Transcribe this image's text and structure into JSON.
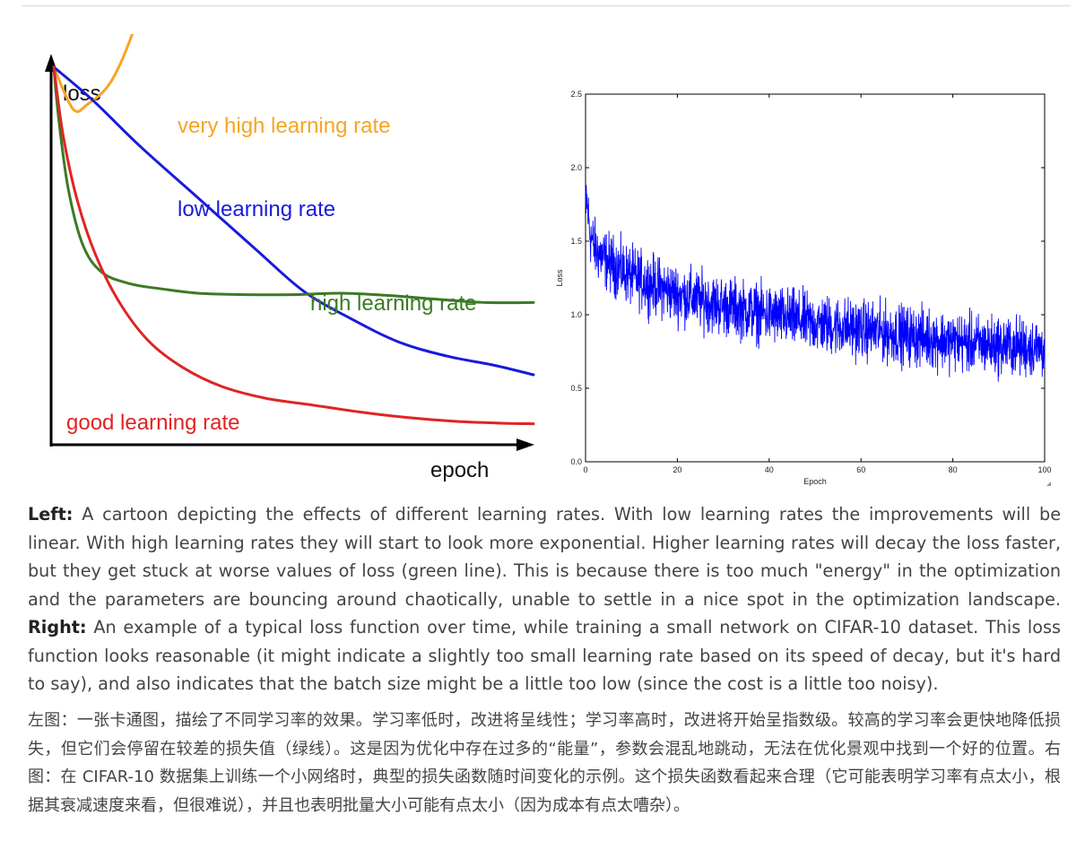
{
  "chart_data": [
    {
      "type": "line",
      "title": "",
      "xlabel": "epoch",
      "ylabel": "loss",
      "grid": false,
      "series": [
        {
          "name": "very high learning rate",
          "color": "#f5a623",
          "x": [
            0,
            0.04,
            0.07,
            0.12,
            0.17,
            0.21,
            0.25
          ],
          "y": [
            0.81,
            0.72,
            0.73,
            0.78,
            0.9,
            1.05,
            1.18
          ]
        },
        {
          "name": "low learning rate",
          "color": "#1a1adb",
          "x": [
            0,
            0.08,
            0.18,
            0.3,
            0.42,
            0.52,
            0.62,
            0.72,
            0.82,
            0.92,
            1.0
          ],
          "y": [
            0.81,
            0.74,
            0.64,
            0.53,
            0.42,
            0.33,
            0.27,
            0.22,
            0.19,
            0.17,
            0.15
          ]
        },
        {
          "name": "high learning rate",
          "color": "#3b7a24",
          "x": [
            0,
            0.01,
            0.03,
            0.06,
            0.1,
            0.16,
            0.22,
            0.3,
            0.4,
            0.5,
            0.6,
            0.7,
            0.8,
            0.9,
            1.0
          ],
          "y": [
            0.81,
            0.7,
            0.55,
            0.43,
            0.37,
            0.345,
            0.335,
            0.325,
            0.322,
            0.322,
            0.325,
            0.32,
            0.312,
            0.305,
            0.305
          ]
        },
        {
          "name": "good learning rate",
          "color": "#e02424",
          "x": [
            0,
            0.02,
            0.05,
            0.09,
            0.14,
            0.2,
            0.27,
            0.35,
            0.44,
            0.54,
            0.64,
            0.74,
            0.84,
            0.94,
            1.0
          ],
          "y": [
            0.81,
            0.66,
            0.52,
            0.4,
            0.3,
            0.22,
            0.165,
            0.125,
            0.1,
            0.085,
            0.07,
            0.058,
            0.05,
            0.046,
            0.045
          ]
        }
      ]
    },
    {
      "type": "line",
      "title": "",
      "xlabel": "Epoch",
      "ylabel": "Loss",
      "xlim": [
        0,
        100
      ],
      "ylim": [
        0,
        2.5
      ],
      "xticks": [
        "0",
        "20",
        "40",
        "60",
        "80",
        "100"
      ],
      "yticks": [
        "0.0",
        "0.5",
        "1.0",
        "1.5",
        "2.0",
        "2.5"
      ],
      "grid": false,
      "series": [
        {
          "color": "#0000ff",
          "x": [
            0,
            1,
            2,
            4,
            7,
            10,
            15,
            20,
            25,
            30,
            35,
            40,
            45,
            50,
            55,
            60,
            65,
            70,
            75,
            80,
            85,
            90,
            95,
            100
          ],
          "y": [
            1.85,
            1.55,
            1.45,
            1.38,
            1.32,
            1.26,
            1.2,
            1.14,
            1.1,
            1.06,
            1.03,
            1.0,
            0.97,
            0.94,
            0.92,
            0.9,
            0.88,
            0.86,
            0.84,
            0.82,
            0.8,
            0.79,
            0.78,
            0.77
          ],
          "noise_amplitude": 0.17
        }
      ]
    }
  ],
  "captions": {
    "en": {
      "left_label": "Left:",
      "left_text": " A cartoon depicting the effects of different learning rates. With low learning rates the improvements will be linear. With high learning rates they will start to look more exponential. Higher learning rates will decay the loss faster, but they get stuck at worse values of loss (green line). This is because there is too much \"energy\" in the optimization and the parameters are bouncing around chaotically, unable to settle in a nice spot in the optimization landscape. ",
      "right_label": "Right:",
      "right_text": " An example of a typical loss function over time, while training a small network on CIFAR-10 dataset. This loss function looks reasonable (it might indicate a slightly too small learning rate based on its speed of decay, but it's hard to say), and also indicates that the batch size might be a little too low (since the cost is a little too noisy)."
    },
    "zh": "左图：一张卡通图，描绘了不同学习率的效果。学习率低时，改进将呈线性；学习率高时，改进将开始呈指数级。较高的学习率会更快地降低损失，但它们会停留在较差的损失值（绿线）。这是因为优化中存在过多的“能量”，参数会混乱地跳动，无法在优化景观中找到一个好的位置。右图：在 CIFAR-10 数据集上训练一个小网络时，典型的损失函数随时间变化的示例。这个损失函数看起来合理（它可能表明学习率有点太小，根据其衰减速度来看，但很难说），并且也表明批量大小可能有点太小（因为成本有点太嘈杂）。"
  }
}
